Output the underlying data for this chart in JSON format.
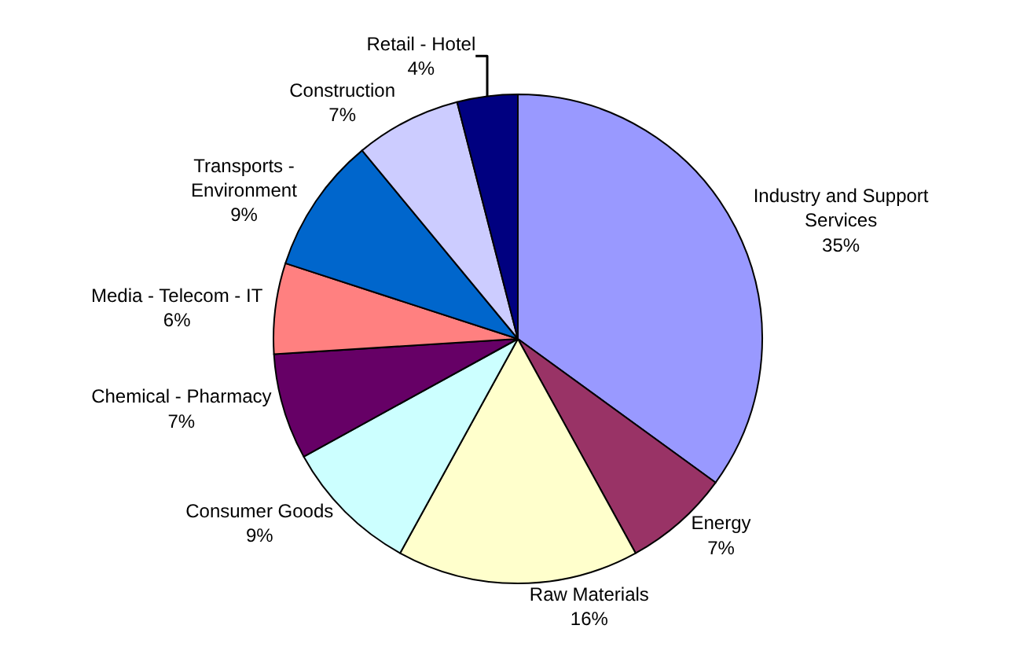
{
  "chart_data": {
    "type": "pie",
    "categories": [
      "Industry and Support Services",
      "Energy",
      "Raw Materials",
      "Consumer Goods",
      "Chemical - Pharmacy",
      "Media - Telecom - IT",
      "Transports - Environment",
      "Construction",
      "Retail - Hotel"
    ],
    "values": [
      35,
      7,
      16,
      9,
      7,
      6,
      9,
      7,
      4
    ],
    "value_labels": [
      "35%",
      "7%",
      "16%",
      "9%",
      "7%",
      "6%",
      "9%",
      "7%",
      "4%"
    ],
    "colors": [
      "#9999ff",
      "#993366",
      "#ffffcc",
      "#ccffff",
      "#660066",
      "#ff8080",
      "#0066cc",
      "#ccccff",
      "#000080"
    ],
    "legend": false
  }
}
